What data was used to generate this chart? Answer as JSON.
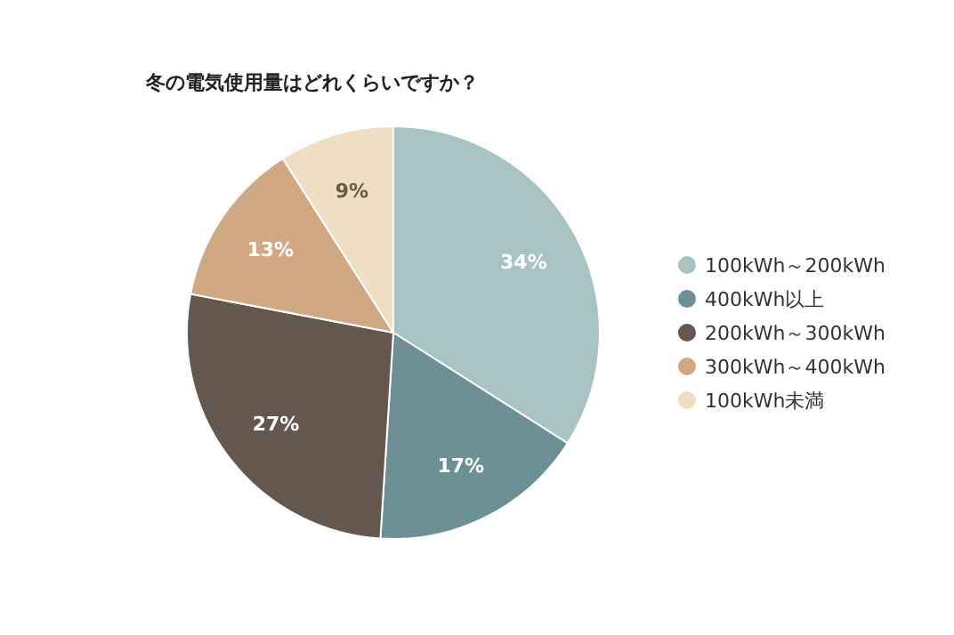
{
  "chart_data": {
    "type": "pie",
    "title": "冬の電気使用量はどれくらいですか？",
    "categories": [
      "100kWh～200kWh",
      "400kWh以上",
      "200kWh～300kWh",
      "300kWh～400kWh",
      "100kWh未満"
    ],
    "values": [
      34,
      17,
      27,
      13,
      9
    ],
    "colors": [
      "#a9c3c2",
      "#6c9095",
      "#64574e",
      "#d0a983",
      "#eedfc3"
    ],
    "value_labels": [
      "34%",
      "17%",
      "27%",
      "13%",
      "9%"
    ],
    "legend": "right"
  }
}
